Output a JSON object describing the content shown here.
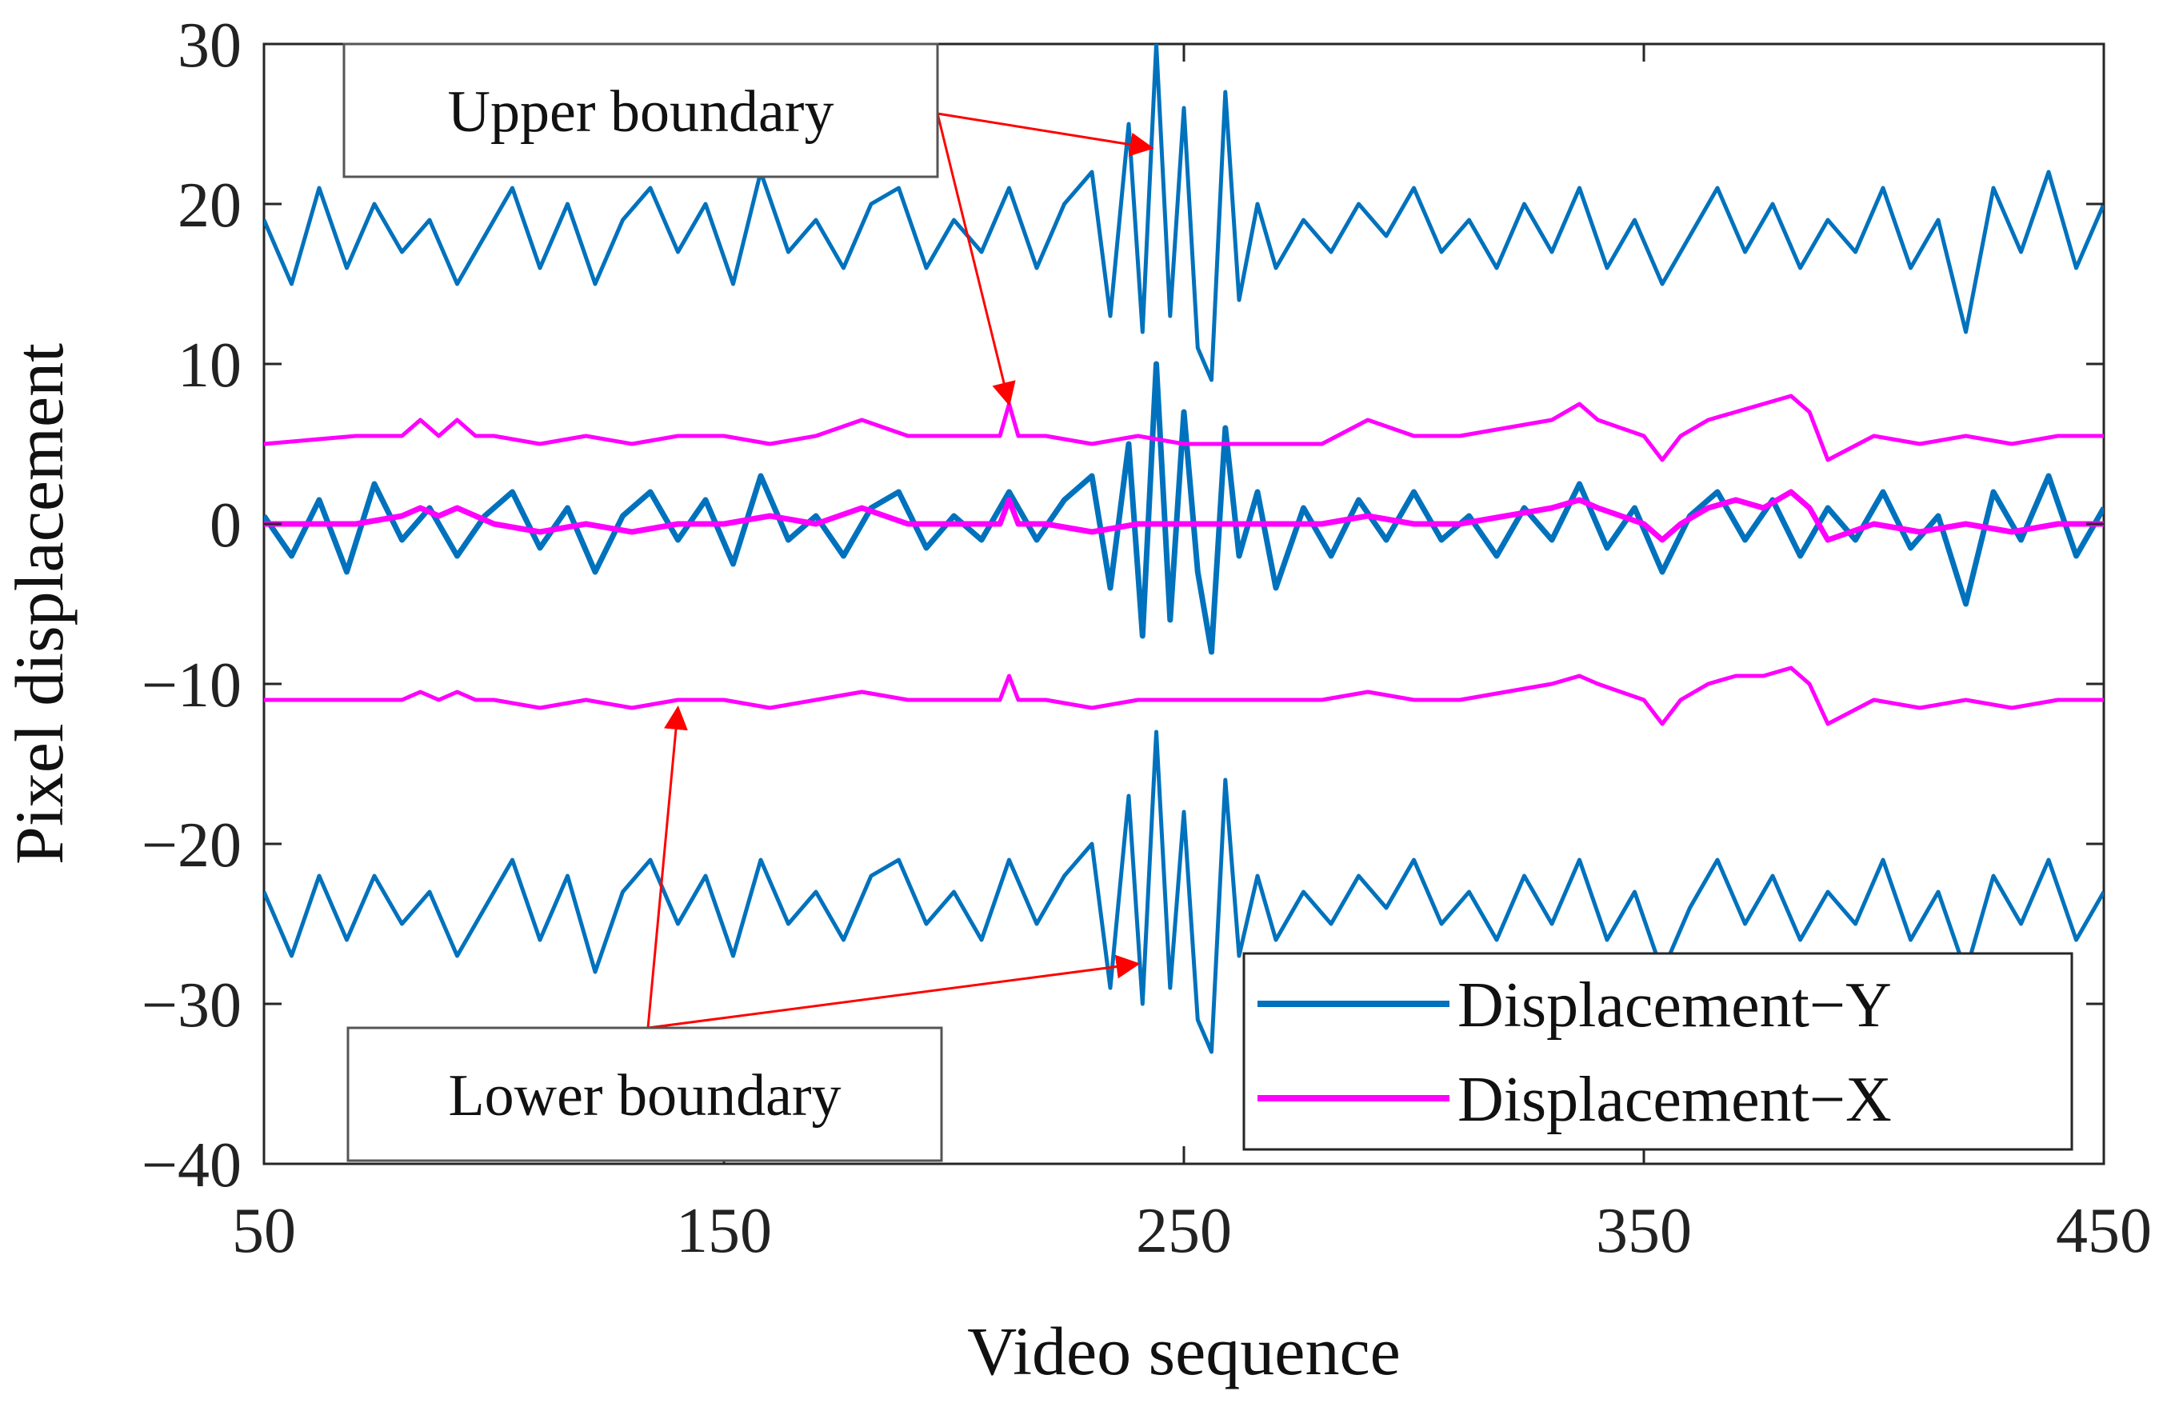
{
  "chart_data": {
    "type": "line",
    "title": "",
    "xlabel": "Video sequence",
    "ylabel": "Pixel displacement",
    "xlim": [
      50,
      450
    ],
    "ylim": [
      -40,
      30
    ],
    "xticks": [
      50,
      150,
      250,
      350,
      450
    ],
    "yticks": [
      30,
      20,
      10,
      0,
      -10,
      -20,
      -30,
      -40
    ],
    "xtick_labels": [
      "50",
      "150",
      "250",
      "350",
      "450"
    ],
    "ytick_labels": [
      "30",
      "20",
      "10",
      "0",
      "−10",
      "−20",
      "−30",
      "−40"
    ],
    "grid": false,
    "legend_position": "bottom-right",
    "series": [
      {
        "name": "Displacement−Y",
        "color": "#0072BD",
        "kind": "signal",
        "x": [
          50,
          56,
          62,
          68,
          74,
          80,
          86,
          92,
          98,
          104,
          110,
          116,
          122,
          128,
          134,
          140,
          146,
          152,
          158,
          164,
          170,
          176,
          182,
          188,
          194,
          200,
          206,
          212,
          218,
          224,
          230,
          234,
          238,
          241,
          244,
          247,
          250,
          253,
          256,
          259,
          262,
          266,
          270,
          276,
          282,
          288,
          294,
          300,
          306,
          312,
          318,
          324,
          330,
          336,
          342,
          348,
          354,
          360,
          366,
          372,
          378,
          384,
          390,
          396,
          402,
          408,
          414,
          420,
          426,
          432,
          438,
          444,
          450
        ],
        "values": [
          0.5,
          -2,
          1.5,
          -3,
          2.5,
          -1,
          1,
          -2,
          0.5,
          2,
          -1.5,
          1,
          -3,
          0.5,
          2,
          -1,
          1.5,
          -2.5,
          3,
          -1,
          0.5,
          -2,
          1,
          2,
          -1.5,
          0.5,
          -1,
          2,
          -1,
          1.5,
          3,
          -4,
          5,
          -7,
          10,
          -6,
          7,
          -3,
          -8,
          6,
          -2,
          2,
          -4,
          1,
          -2,
          1.5,
          -1,
          2,
          -1,
          0.5,
          -2,
          1,
          -1,
          2.5,
          -1.5,
          1,
          -3,
          0.5,
          2,
          -1,
          1.5,
          -2,
          1,
          -1,
          2,
          -1.5,
          0.5,
          -5,
          2,
          -1,
          3,
          -2,
          1
        ]
      },
      {
        "name": "Displacement−X",
        "color": "#FF00FF",
        "kind": "signal",
        "x": [
          50,
          70,
          80,
          84,
          88,
          92,
          96,
          100,
          110,
          120,
          130,
          140,
          150,
          160,
          170,
          180,
          190,
          200,
          210,
          212,
          214,
          220,
          230,
          240,
          250,
          260,
          270,
          280,
          290,
          300,
          310,
          320,
          330,
          336,
          340,
          350,
          354,
          358,
          364,
          370,
          376,
          382,
          386,
          390,
          400,
          410,
          420,
          430,
          440,
          450
        ],
        "values": [
          0,
          0,
          0.5,
          1,
          0.5,
          1,
          0.5,
          0,
          -0.5,
          0,
          -0.5,
          0,
          0,
          0.5,
          0,
          1,
          0,
          0,
          0,
          1.5,
          0,
          0,
          -0.5,
          0,
          0,
          0,
          0,
          0,
          0.5,
          0,
          0,
          0.5,
          1,
          1.5,
          1,
          0,
          -1,
          0,
          1,
          1.5,
          1,
          2,
          1,
          -1,
          0,
          -0.5,
          0,
          -0.5,
          0,
          0
        ]
      },
      {
        "name": "Displacement−Y upper boundary",
        "color": "#0072BD",
        "kind": "boundary",
        "x": [
          50,
          56,
          62,
          68,
          74,
          80,
          86,
          92,
          98,
          104,
          110,
          116,
          122,
          128,
          134,
          140,
          146,
          152,
          158,
          164,
          170,
          176,
          182,
          188,
          194,
          200,
          206,
          212,
          218,
          224,
          230,
          234,
          238,
          241,
          244,
          247,
          250,
          253,
          256,
          259,
          262,
          266,
          270,
          276,
          282,
          288,
          294,
          300,
          306,
          312,
          318,
          324,
          330,
          336,
          342,
          348,
          354,
          360,
          366,
          372,
          378,
          384,
          390,
          396,
          402,
          408,
          414,
          420,
          426,
          432,
          438,
          444,
          450
        ],
        "values": [
          19,
          15,
          21,
          16,
          20,
          17,
          19,
          15,
          18,
          21,
          16,
          20,
          15,
          19,
          21,
          17,
          20,
          15,
          22,
          17,
          19,
          16,
          20,
          21,
          16,
          19,
          17,
          21,
          16,
          20,
          22,
          13,
          25,
          12,
          30,
          13,
          26,
          11,
          9,
          27,
          14,
          20,
          16,
          19,
          17,
          20,
          18,
          21,
          17,
          19,
          16,
          20,
          17,
          21,
          16,
          19,
          15,
          18,
          21,
          17,
          20,
          16,
          19,
          17,
          21,
          16,
          19,
          12,
          21,
          17,
          22,
          16,
          20
        ]
      },
      {
        "name": "Displacement−Y lower boundary",
        "color": "#0072BD",
        "kind": "boundary",
        "x": [
          50,
          56,
          62,
          68,
          74,
          80,
          86,
          92,
          98,
          104,
          110,
          116,
          122,
          128,
          134,
          140,
          146,
          152,
          158,
          164,
          170,
          176,
          182,
          188,
          194,
          200,
          206,
          212,
          218,
          224,
          230,
          234,
          238,
          241,
          244,
          247,
          250,
          253,
          256,
          259,
          262,
          266,
          270,
          276,
          282,
          288,
          294,
          300,
          306,
          312,
          318,
          324,
          330,
          336,
          342,
          348,
          354,
          360,
          366,
          372,
          378,
          384,
          390,
          396,
          402,
          408,
          414,
          420,
          426,
          432,
          438,
          444,
          450
        ],
        "values": [
          -23,
          -27,
          -22,
          -26,
          -22,
          -25,
          -23,
          -27,
          -24,
          -21,
          -26,
          -22,
          -28,
          -23,
          -21,
          -25,
          -22,
          -27,
          -21,
          -25,
          -23,
          -26,
          -22,
          -21,
          -25,
          -23,
          -26,
          -21,
          -25,
          -22,
          -20,
          -29,
          -17,
          -30,
          -13,
          -29,
          -18,
          -31,
          -33,
          -16,
          -27,
          -22,
          -26,
          -23,
          -25,
          -22,
          -24,
          -21,
          -25,
          -23,
          -26,
          -22,
          -25,
          -21,
          -26,
          -23,
          -28,
          -24,
          -21,
          -25,
          -22,
          -26,
          -23,
          -25,
          -21,
          -26,
          -23,
          -28,
          -22,
          -25,
          -21,
          -26,
          -23
        ]
      },
      {
        "name": "Displacement−X upper boundary",
        "color": "#FF00FF",
        "kind": "boundary",
        "x": [
          50,
          70,
          80,
          84,
          88,
          92,
          96,
          100,
          110,
          120,
          130,
          140,
          150,
          160,
          170,
          180,
          190,
          200,
          210,
          212,
          214,
          220,
          230,
          240,
          250,
          260,
          270,
          280,
          290,
          300,
          310,
          320,
          330,
          336,
          340,
          350,
          354,
          358,
          364,
          370,
          376,
          382,
          386,
          390,
          400,
          410,
          420,
          430,
          440,
          450
        ],
        "values": [
          5,
          5.5,
          5.5,
          6.5,
          5.5,
          6.5,
          5.5,
          5.5,
          5,
          5.5,
          5,
          5.5,
          5.5,
          5,
          5.5,
          6.5,
          5.5,
          5.5,
          5.5,
          7.5,
          5.5,
          5.5,
          5,
          5.5,
          5,
          5,
          5,
          5,
          6.5,
          5.5,
          5.5,
          6,
          6.5,
          7.5,
          6.5,
          5.5,
          4,
          5.5,
          6.5,
          7,
          7.5,
          8,
          7,
          4,
          5.5,
          5,
          5.5,
          5,
          5.5,
          5.5
        ]
      },
      {
        "name": "Displacement−X lower boundary",
        "color": "#FF00FF",
        "kind": "boundary",
        "x": [
          50,
          70,
          80,
          84,
          88,
          92,
          96,
          100,
          110,
          120,
          130,
          140,
          150,
          160,
          170,
          180,
          190,
          200,
          210,
          212,
          214,
          220,
          230,
          240,
          250,
          260,
          270,
          280,
          290,
          300,
          310,
          320,
          330,
          336,
          340,
          350,
          354,
          358,
          364,
          370,
          376,
          382,
          386,
          390,
          400,
          410,
          420,
          430,
          440,
          450
        ],
        "values": [
          -11,
          -11,
          -11,
          -10.5,
          -11,
          -10.5,
          -11,
          -11,
          -11.5,
          -11,
          -11.5,
          -11,
          -11,
          -11.5,
          -11,
          -10.5,
          -11,
          -11,
          -11,
          -9.5,
          -11,
          -11,
          -11.5,
          -11,
          -11,
          -11,
          -11,
          -11,
          -10.5,
          -11,
          -11,
          -10.5,
          -10,
          -9.5,
          -10,
          -11,
          -12.5,
          -11,
          -10,
          -9.5,
          -9.5,
          -9,
          -10,
          -12.5,
          -11,
          -11.5,
          -11,
          -11.5,
          -11,
          -11
        ]
      }
    ],
    "legend": [
      {
        "label": "Displacement−Y",
        "color": "#0072BD"
      },
      {
        "label": "Displacement−X",
        "color": "#FF00FF"
      }
    ],
    "annotations": [
      {
        "text": "Upper boundary",
        "arrows_to": [
          [
            243,
            23.5
          ],
          [
            212,
            7.5
          ]
        ]
      },
      {
        "text": "Lower boundary",
        "arrows_to": [
          [
            140,
            -11.5
          ],
          [
            240,
            -27.5
          ]
        ]
      }
    ]
  }
}
